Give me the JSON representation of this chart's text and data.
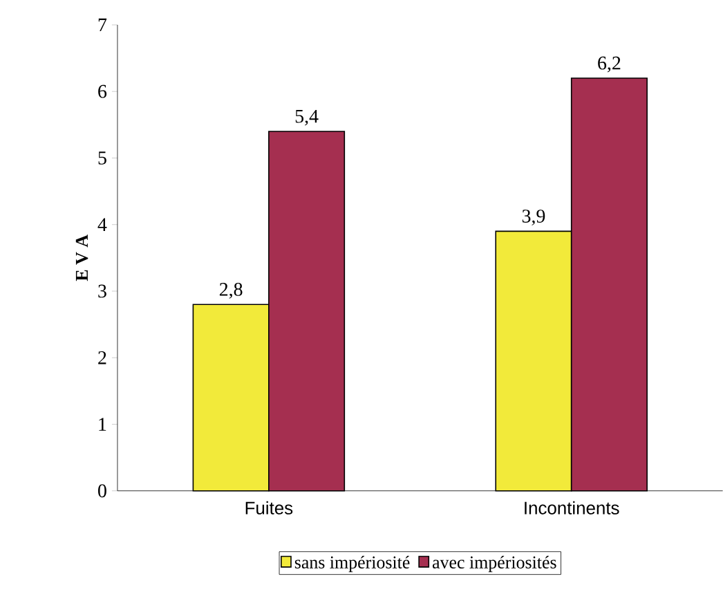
{
  "chart_data": {
    "type": "bar",
    "ylabel": "E V A",
    "categories": [
      "Fuites",
      "Incontinents"
    ],
    "series": [
      {
        "name": "sans impériosité",
        "color": "#f2ea3a",
        "values": [
          2.8,
          3.9
        ],
        "value_labels": [
          "2,8",
          "3,9"
        ]
      },
      {
        "name": "avec impériosités",
        "color": "#a52f50",
        "values": [
          5.4,
          6.2
        ],
        "value_labels": [
          "5,4",
          "6,2"
        ]
      }
    ],
    "ylim": [
      0,
      7
    ],
    "yticks": [
      0,
      1,
      2,
      3,
      4,
      5,
      6,
      7
    ],
    "legend": "bottom"
  }
}
